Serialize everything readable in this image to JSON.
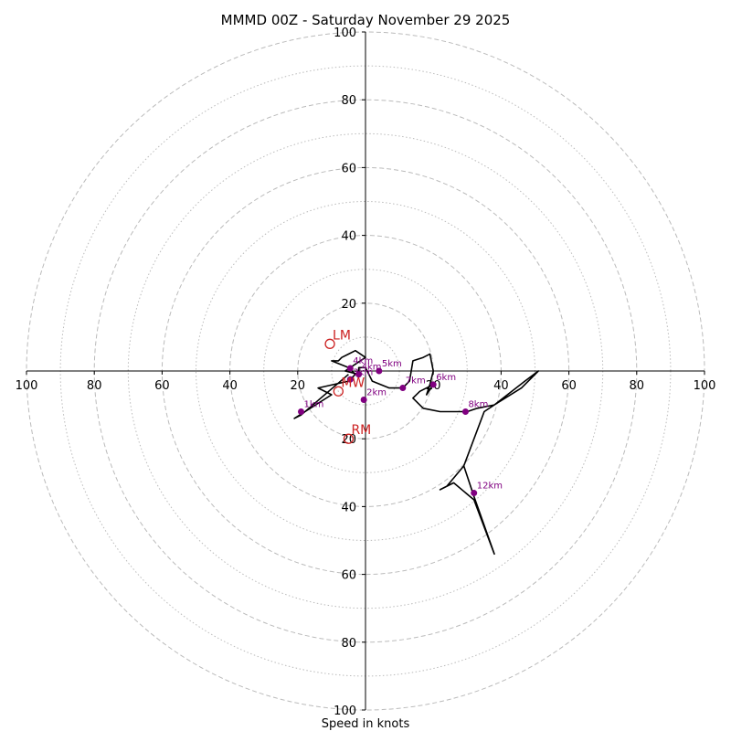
{
  "chart_data": {
    "type": "hodograph",
    "title": "MMMD 00Z - Saturday November 29 2025",
    "xlabel": "Speed in knots",
    "xlim": [
      -100,
      100
    ],
    "ylim": [
      -100,
      100
    ],
    "rings_major": [
      20,
      40,
      60,
      80,
      100
    ],
    "rings_minor": [
      10,
      30,
      50,
      70,
      90
    ],
    "x_tick_labels": [
      {
        "value": -100,
        "label": "100"
      },
      {
        "value": -80,
        "label": "80"
      },
      {
        "value": -60,
        "label": "60"
      },
      {
        "value": -40,
        "label": "40"
      },
      {
        "value": -20,
        "label": "20"
      },
      {
        "value": 20,
        "label": "20"
      },
      {
        "value": 40,
        "label": "40"
      },
      {
        "value": 60,
        "label": "60"
      },
      {
        "value": 80,
        "label": "80"
      },
      {
        "value": 100,
        "label": "100"
      }
    ],
    "y_tick_labels": [
      {
        "value": 100,
        "label": "100"
      },
      {
        "value": 80,
        "label": "80"
      },
      {
        "value": 60,
        "label": "60"
      },
      {
        "value": 40,
        "label": "40"
      },
      {
        "value": 20,
        "label": "20"
      },
      {
        "value": -20,
        "label": "20"
      },
      {
        "value": -40,
        "label": "40"
      },
      {
        "value": -60,
        "label": "60"
      },
      {
        "value": -80,
        "label": "80"
      },
      {
        "value": -100,
        "label": "100"
      }
    ],
    "line_color": "#000000",
    "ring_color": "#bbbbbb",
    "hodograph_trace": [
      [
        -5,
        -1
      ],
      [
        -19,
        -13
      ],
      [
        -21,
        -14
      ],
      [
        -10,
        -7
      ],
      [
        -14,
        -5
      ],
      [
        -5,
        -3
      ],
      [
        -3,
        -1
      ],
      [
        -5,
        1
      ],
      [
        -10,
        3
      ],
      [
        -8,
        3
      ],
      [
        -7,
        4
      ],
      [
        -3,
        6
      ],
      [
        0,
        4
      ],
      [
        -3,
        2
      ],
      [
        -6,
        0
      ],
      [
        -2,
        -1
      ],
      [
        -2,
        1
      ],
      [
        0,
        1
      ],
      [
        2,
        -3
      ],
      [
        7,
        -5
      ],
      [
        11,
        -5
      ],
      [
        13,
        -3
      ],
      [
        14,
        3
      ],
      [
        17,
        4
      ],
      [
        19,
        5
      ],
      [
        20,
        0
      ],
      [
        19,
        -4
      ],
      [
        18,
        -7
      ],
      [
        20,
        -4
      ],
      [
        16,
        -6
      ],
      [
        14,
        -8
      ],
      [
        17,
        -11
      ],
      [
        22,
        -12
      ],
      [
        30,
        -12
      ],
      [
        33,
        -11
      ],
      [
        38,
        -10
      ],
      [
        46,
        -5
      ],
      [
        51,
        0
      ],
      [
        47,
        -3
      ],
      [
        38,
        -10
      ],
      [
        35,
        -12
      ],
      [
        29,
        -28
      ],
      [
        24,
        -34
      ],
      [
        22,
        -35
      ],
      [
        26,
        -33
      ],
      [
        32,
        -38
      ],
      [
        38,
        -54
      ],
      [
        32,
        -37
      ],
      [
        29,
        -28
      ]
    ],
    "height_markers": [
      {
        "label": "1km",
        "u": -19.0,
        "v": -12.0
      },
      {
        "label": "2km",
        "u": -0.5,
        "v": -8.5
      },
      {
        "label": "3km",
        "u": -4.5,
        "v": -2.5
      },
      {
        "label": "4km",
        "u": -2.0,
        "v": -1.0
      },
      {
        "label": "4km",
        "u": -4.5,
        "v": 0.8
      },
      {
        "label": "5km",
        "u": 4.0,
        "v": 0.0
      },
      {
        "label": "6km",
        "u": 20.0,
        "v": -4.0
      },
      {
        "label": "7km",
        "u": 11.0,
        "v": -5.0
      },
      {
        "label": "8km",
        "u": 29.5,
        "v": -12.0
      },
      {
        "label": "12km",
        "u": 32.0,
        "v": -36.0
      }
    ],
    "marker_color": "#800080",
    "storm_motions": [
      {
        "label": "LM",
        "u": -10.5,
        "v": 8.0
      },
      {
        "label": "RM",
        "u": -5.0,
        "v": -20.0
      },
      {
        "label": "MW",
        "u": -8.0,
        "v": -6.0
      }
    ],
    "motion_color": "#cc2222"
  }
}
